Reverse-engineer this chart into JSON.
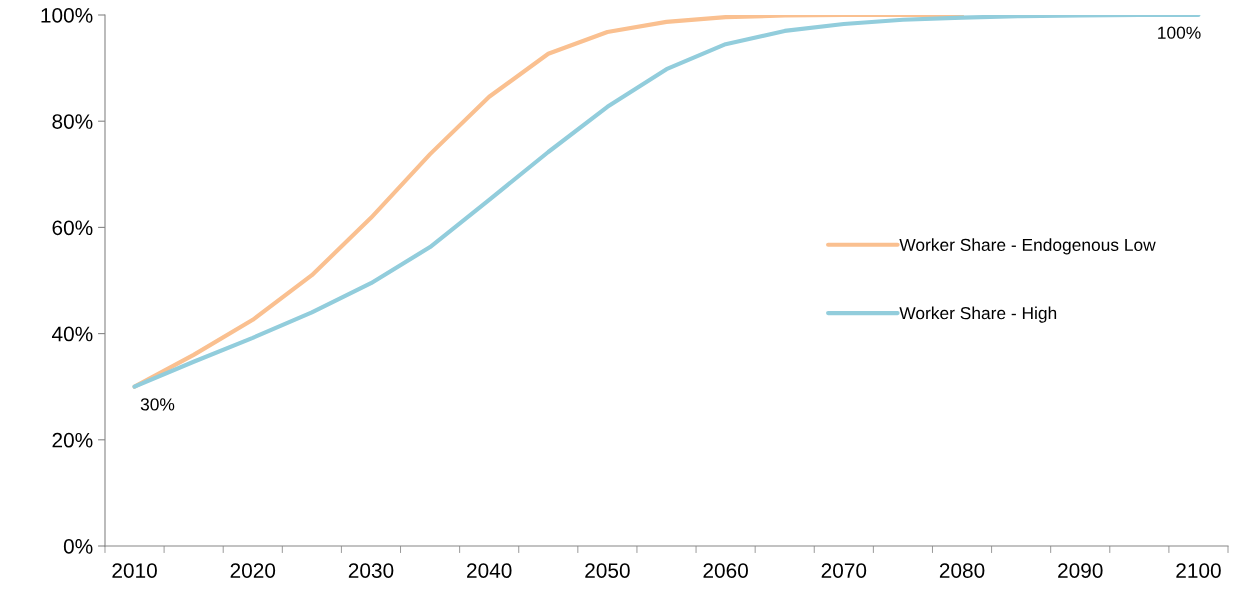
{
  "chart_data": {
    "type": "line",
    "categories": [
      "2010",
      null,
      "2020",
      null,
      "2030",
      null,
      "2040",
      null,
      "2050",
      null,
      "2060",
      null,
      "2070",
      null,
      "2080",
      null,
      "2090",
      null,
      "2100"
    ],
    "series": [
      {
        "name": "Worker Share - Endogenous Low",
        "color": "#fac090",
        "values": [
          30,
          36,
          42.6,
          51,
          61.8,
          73.8,
          84.6,
          92.7,
          96.8,
          98.7,
          99.6,
          99.9,
          100,
          100,
          100,
          null,
          null,
          null,
          null
        ]
      },
      {
        "name": "Worker Share - High",
        "color": "#92cddc",
        "values": [
          30,
          34.7,
          39.2,
          44,
          49.5,
          56.3,
          65.2,
          74.2,
          82.7,
          89.8,
          94.5,
          97,
          98.3,
          99.1,
          99.5,
          99.8,
          99.9,
          100,
          100
        ],
        "value_labels": [
          "30%",
          null,
          null,
          null,
          null,
          null,
          null,
          null,
          null,
          null,
          null,
          null,
          null,
          null,
          null,
          null,
          null,
          null,
          "100%"
        ]
      }
    ],
    "ylim": [
      0,
      100
    ],
    "yticks": [
      {
        "value": 0,
        "label": "0%"
      },
      {
        "value": 20,
        "label": "20%"
      },
      {
        "value": 40,
        "label": "40%"
      },
      {
        "value": 60,
        "label": "60%"
      },
      {
        "value": 80,
        "label": "80%"
      },
      {
        "value": 100,
        "label": "100%"
      }
    ],
    "grid": false,
    "legend": "right",
    "marker": "none",
    "line_style": "solid"
  }
}
